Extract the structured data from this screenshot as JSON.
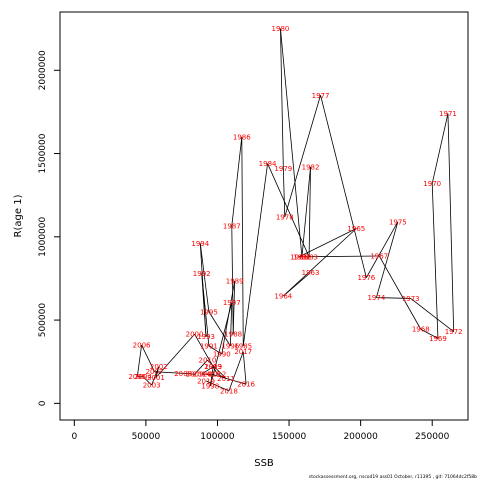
{
  "chart_data": {
    "type": "line",
    "xlabel": "SSB",
    "ylabel": "R(age 1)",
    "xlim": [
      -10000,
      275000
    ],
    "ylim": [
      -100000,
      2350000
    ],
    "xticks": [
      "0",
      "50000",
      "100000",
      "150000",
      "200000",
      "250000"
    ],
    "yticks": [
      "0",
      "500000",
      "1000000",
      "1500000",
      "2000000"
    ],
    "grid": false,
    "legend": "none",
    "line_color": "#000000",
    "label_color": "#ff0000",
    "points": [
      {
        "year": "1963",
        "x": 165000,
        "y": 785000
      },
      {
        "year": "1964",
        "x": 146000,
        "y": 645000
      },
      {
        "year": "1965",
        "x": 197000,
        "y": 1050000
      },
      {
        "year": "1966",
        "x": 157000,
        "y": 880000
      },
      {
        "year": "1967",
        "x": 213000,
        "y": 885000
      },
      {
        "year": "1968",
        "x": 242000,
        "y": 445000
      },
      {
        "year": "1969",
        "x": 254000,
        "y": 390000
      },
      {
        "year": "1970",
        "x": 250000,
        "y": 1320000
      },
      {
        "year": "1971",
        "x": 261000,
        "y": 1740000
      },
      {
        "year": "1972",
        "x": 265000,
        "y": 430000
      },
      {
        "year": "1973",
        "x": 235000,
        "y": 630000
      },
      {
        "year": "1974",
        "x": 211000,
        "y": 635000
      },
      {
        "year": "1975",
        "x": 226000,
        "y": 1090000
      },
      {
        "year": "1976",
        "x": 204000,
        "y": 755000
      },
      {
        "year": "1977",
        "x": 172000,
        "y": 1850000
      },
      {
        "year": "1978",
        "x": 147000,
        "y": 1120000
      },
      {
        "year": "1979",
        "x": 146000,
        "y": 1410000
      },
      {
        "year": "1980",
        "x": 144000,
        "y": 2250000
      },
      {
        "year": "1981",
        "x": 159000,
        "y": 880000
      },
      {
        "year": "1982",
        "x": 165000,
        "y": 1420000
      },
      {
        "year": "1983",
        "x": 164000,
        "y": 880000
      },
      {
        "year": "1984",
        "x": 135000,
        "y": 1440000
      },
      {
        "year": "1985",
        "x": 118000,
        "y": 345000
      },
      {
        "year": "1986",
        "x": 117000,
        "y": 1600000
      },
      {
        "year": "1987",
        "x": 110000,
        "y": 1065000
      },
      {
        "year": "1988",
        "x": 111000,
        "y": 415000
      },
      {
        "year": "1989",
        "x": 112000,
        "y": 735000
      },
      {
        "year": "1990",
        "x": 103000,
        "y": 295000
      },
      {
        "year": "1991",
        "x": 94000,
        "y": 345000
      },
      {
        "year": "1992",
        "x": 89000,
        "y": 780000
      },
      {
        "year": "1993",
        "x": 92000,
        "y": 400000
      },
      {
        "year": "1994",
        "x": 88000,
        "y": 960000
      },
      {
        "year": "1995",
        "x": 94000,
        "y": 550000
      },
      {
        "year": "1996",
        "x": 109000,
        "y": 345000
      },
      {
        "year": "1997",
        "x": 110000,
        "y": 605000
      },
      {
        "year": "1998",
        "x": 95000,
        "y": 105000
      },
      {
        "year": "1999",
        "x": 97000,
        "y": 220000
      },
      {
        "year": "2000",
        "x": 84000,
        "y": 415000
      },
      {
        "year": "2001",
        "x": 57000,
        "y": 155000
      },
      {
        "year": "2002",
        "x": 59000,
        "y": 220000
      },
      {
        "year": "2003",
        "x": 54000,
        "y": 110000
      },
      {
        "year": "2004",
        "x": 48000,
        "y": 160000
      },
      {
        "year": "2005",
        "x": 44000,
        "y": 160000
      },
      {
        "year": "2006",
        "x": 47000,
        "y": 350000
      },
      {
        "year": "2007",
        "x": 56000,
        "y": 190000
      },
      {
        "year": "2008",
        "x": 76000,
        "y": 180000
      },
      {
        "year": "2009",
        "x": 84000,
        "y": 175000
      },
      {
        "year": "2010",
        "x": 93000,
        "y": 260000
      },
      {
        "year": "2011",
        "x": 106000,
        "y": 150000
      },
      {
        "year": "2012",
        "x": 100000,
        "y": 175000
      },
      {
        "year": "2013",
        "x": 97000,
        "y": 220000
      },
      {
        "year": "2014",
        "x": 89000,
        "y": 175000
      },
      {
        "year": "2015",
        "x": 96000,
        "y": 175000
      },
      {
        "year": "2016",
        "x": 120000,
        "y": 115000
      },
      {
        "year": "2017",
        "x": 118000,
        "y": 310000
      },
      {
        "year": "2018",
        "x": 108000,
        "y": 75000
      },
      {
        "year": "2019",
        "x": 92000,
        "y": 135000
      }
    ]
  },
  "footer": {
    "text": "stockassessment.org,  nscod19  ass01  October,  r11395 ,  git:  71064dc2f58b"
  }
}
